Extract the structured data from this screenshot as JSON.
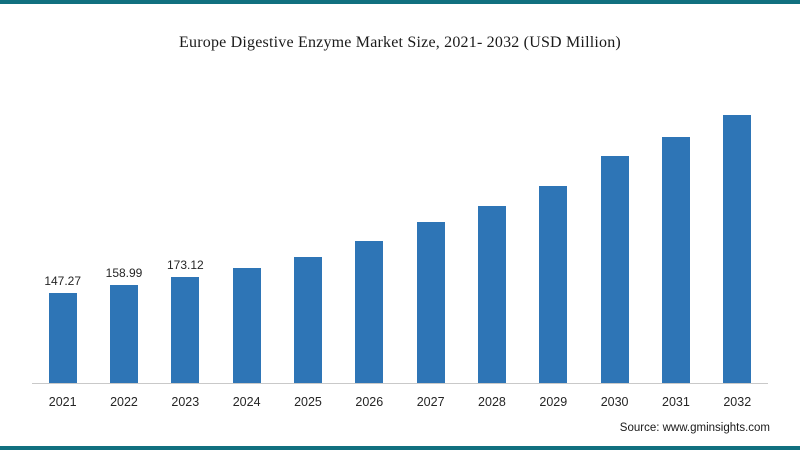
{
  "page": {
    "accent_border_color": "#11707f",
    "bar_color": "#2e75b6",
    "source": "Source: www.gminsights.com"
  },
  "chart_data": {
    "type": "bar",
    "title": "Europe Digestive Enzyme Market Size, 2021- 2032 (USD Million)",
    "xlabel": "",
    "ylabel": "",
    "categories": [
      "2021",
      "2022",
      "2023",
      "2024",
      "2025",
      "2026",
      "2027",
      "2028",
      "2029",
      "2030",
      "2031",
      "2032"
    ],
    "values": [
      147.27,
      158.99,
      173.12,
      187,
      206,
      231,
      263,
      288,
      321,
      369,
      401,
      437
    ],
    "data_labels_shown": [
      "147.27",
      "158.99",
      "173.12",
      "",
      "",
      "",
      "",
      "",
      "",
      "",
      "",
      ""
    ],
    "ylim": [
      0,
      500
    ],
    "grid": false,
    "legend": "none"
  }
}
